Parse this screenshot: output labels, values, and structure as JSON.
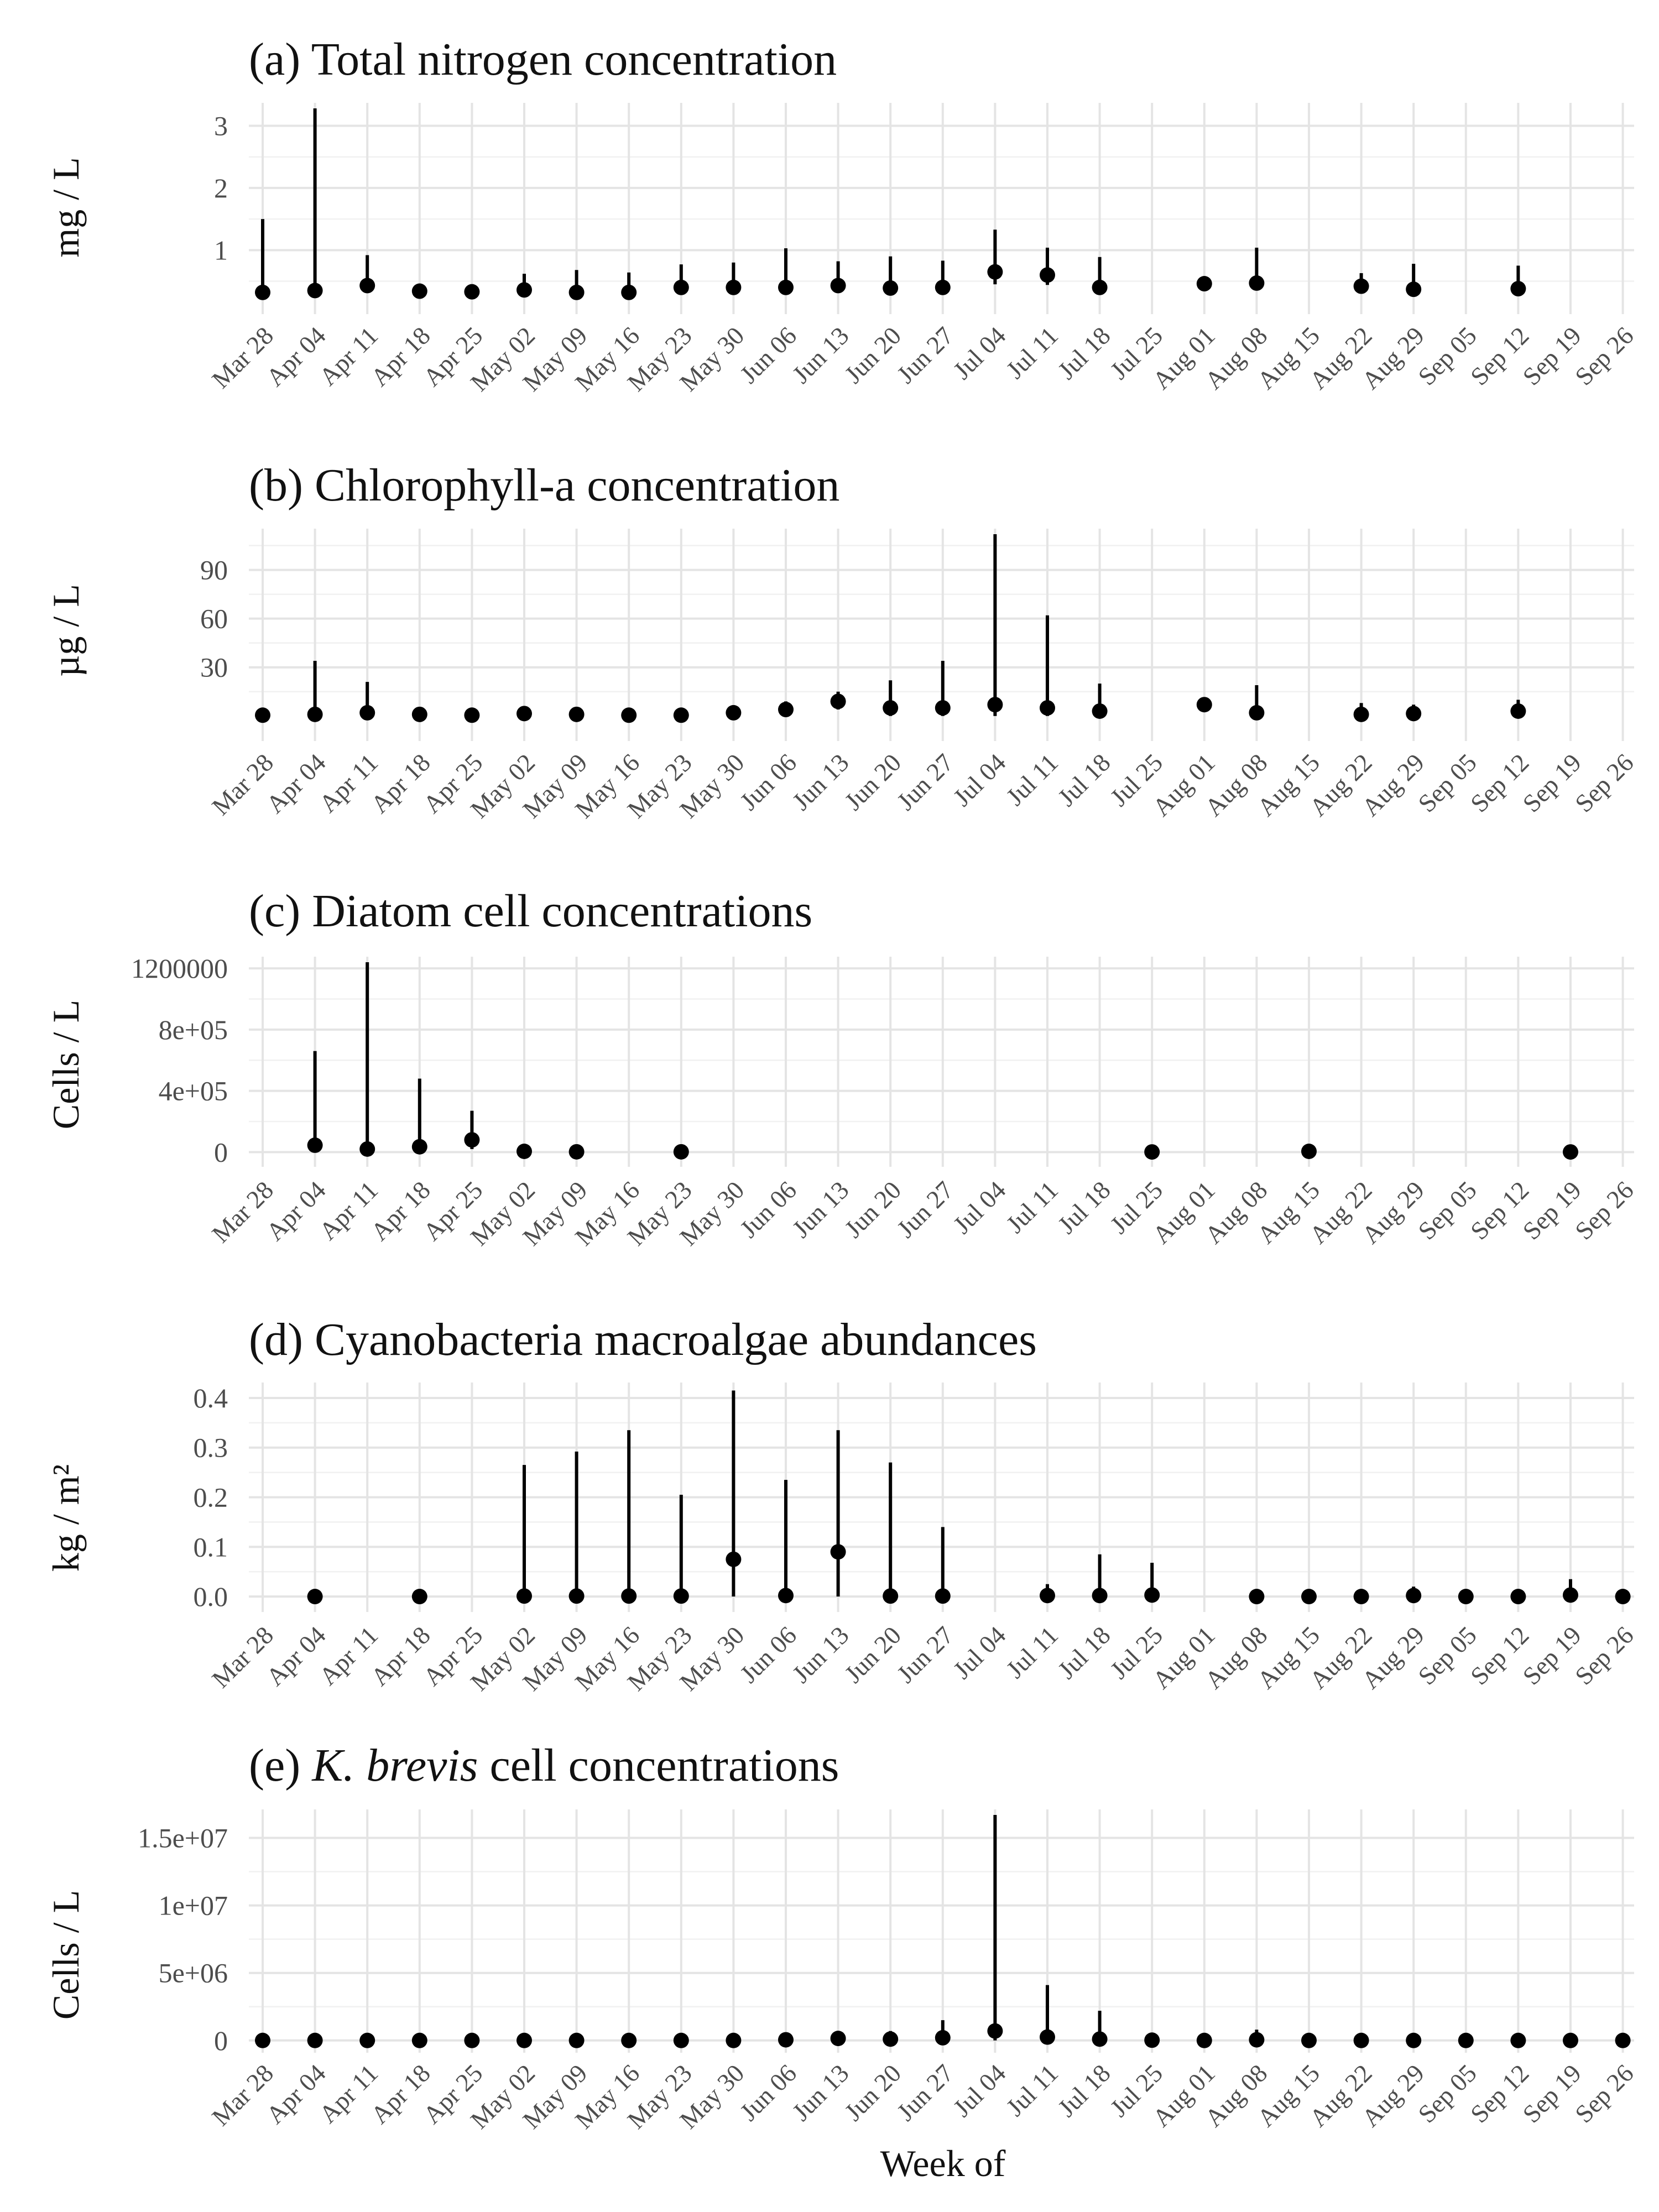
{
  "figure": {
    "xlabel": "Week of"
  },
  "chart_data": [
    {
      "type": "pointrange",
      "title": "(a) Total nitrogen concentration",
      "ylabel": "mg / L",
      "ylim": [
        0.06,
        3.28
      ],
      "yticks": [
        1,
        2,
        3
      ],
      "ytick_labels": [
        "1",
        "2",
        "3"
      ],
      "categories": [
        "Mar 28",
        "Apr 04",
        "Apr 11",
        "Apr 18",
        "Apr 25",
        "May 02",
        "May 09",
        "May 16",
        "May 23",
        "May 30",
        "Jun 06",
        "Jun 13",
        "Jun 20",
        "Jun 27",
        "Jul 04",
        "Jul 11",
        "Jul 18",
        "Jul 25",
        "Aug 01",
        "Aug 08",
        "Aug 15",
        "Aug 22",
        "Aug 29",
        "Sep 05",
        "Sep 12",
        "Sep 19",
        "Sep 26"
      ],
      "points": [
        {
          "x": "Mar 28",
          "y": 0.32,
          "low": 0.3,
          "high": 1.5
        },
        {
          "x": "Apr 04",
          "y": 0.35,
          "low": 0.32,
          "high": 3.28
        },
        {
          "x": "Apr 11",
          "y": 0.43,
          "low": 0.38,
          "high": 0.92
        },
        {
          "x": "Apr 18",
          "y": 0.34,
          "low": 0.3,
          "high": 0.45
        },
        {
          "x": "Apr 25",
          "y": 0.33,
          "low": 0.3,
          "high": 0.4
        },
        {
          "x": "May 02",
          "y": 0.36,
          "low": 0.31,
          "high": 0.62
        },
        {
          "x": "May 09",
          "y": 0.32,
          "low": 0.28,
          "high": 0.68
        },
        {
          "x": "May 16",
          "y": 0.32,
          "low": 0.29,
          "high": 0.64
        },
        {
          "x": "May 23",
          "y": 0.4,
          "low": 0.35,
          "high": 0.77
        },
        {
          "x": "May 30",
          "y": 0.4,
          "low": 0.35,
          "high": 0.8
        },
        {
          "x": "Jun 06",
          "y": 0.4,
          "low": 0.35,
          "high": 1.03
        },
        {
          "x": "Jun 13",
          "y": 0.43,
          "low": 0.38,
          "high": 0.82
        },
        {
          "x": "Jun 20",
          "y": 0.39,
          "low": 0.33,
          "high": 0.9
        },
        {
          "x": "Jun 27",
          "y": 0.4,
          "low": 0.35,
          "high": 0.83
        },
        {
          "x": "Jul 04",
          "y": 0.65,
          "low": 0.45,
          "high": 1.33
        },
        {
          "x": "Jul 11",
          "y": 0.6,
          "low": 0.44,
          "high": 1.04
        },
        {
          "x": "Jul 18",
          "y": 0.4,
          "low": 0.35,
          "high": 0.89
        },
        {
          "x": "Aug 01",
          "y": 0.46,
          "low": 0.42,
          "high": 0.5
        },
        {
          "x": "Aug 08",
          "y": 0.47,
          "low": 0.37,
          "high": 1.04
        },
        {
          "x": "Aug 22",
          "y": 0.42,
          "low": 0.37,
          "high": 0.63
        },
        {
          "x": "Aug 29",
          "y": 0.37,
          "low": 0.33,
          "high": 0.78
        },
        {
          "x": "Sep 12",
          "y": 0.38,
          "low": 0.34,
          "high": 0.75
        }
      ]
    },
    {
      "type": "pointrange",
      "title": "(b) Chlorophyll-a concentration",
      "ylabel": "µg / L",
      "ylim": [
        -12,
        112
      ],
      "yticks": [
        30,
        60,
        90
      ],
      "ytick_labels": [
        "30",
        "60",
        "90"
      ],
      "categories": [
        "Mar 28",
        "Apr 04",
        "Apr 11",
        "Apr 18",
        "Apr 25",
        "May 02",
        "May 09",
        "May 16",
        "May 23",
        "May 30",
        "Jun 06",
        "Jun 13",
        "Jun 20",
        "Jun 27",
        "Jul 04",
        "Jul 11",
        "Jul 18",
        "Jul 25",
        "Aug 01",
        "Aug 08",
        "Aug 15",
        "Aug 22",
        "Aug 29",
        "Sep 05",
        "Sep 12",
        "Sep 19",
        "Sep 26"
      ],
      "points": [
        {
          "x": "Mar 28",
          "y": 0.5,
          "low": 0,
          "high": 2
        },
        {
          "x": "Apr 04",
          "y": 1,
          "low": 0,
          "high": 34
        },
        {
          "x": "Apr 11",
          "y": 2,
          "low": 0,
          "high": 21
        },
        {
          "x": "Apr 18",
          "y": 1,
          "low": 0,
          "high": 3
        },
        {
          "x": "Apr 25",
          "y": 0.5,
          "low": 0,
          "high": 2
        },
        {
          "x": "May 02",
          "y": 1.5,
          "low": 0,
          "high": 6
        },
        {
          "x": "May 09",
          "y": 1,
          "low": 0,
          "high": 3
        },
        {
          "x": "May 16",
          "y": 0.5,
          "low": 0,
          "high": 2
        },
        {
          "x": "May 23",
          "y": 0.5,
          "low": 0,
          "high": 2
        },
        {
          "x": "May 30",
          "y": 2,
          "low": 0,
          "high": 5
        },
        {
          "x": "Jun 06",
          "y": 4,
          "low": 0,
          "high": 9
        },
        {
          "x": "Jun 13",
          "y": 9,
          "low": 4,
          "high": 15
        },
        {
          "x": "Jun 20",
          "y": 5,
          "low": 0,
          "high": 22
        },
        {
          "x": "Jun 27",
          "y": 5,
          "low": 0,
          "high": 34
        },
        {
          "x": "Jul 04",
          "y": 7,
          "low": 0,
          "high": 112
        },
        {
          "x": "Jul 11",
          "y": 5,
          "low": 0,
          "high": 62
        },
        {
          "x": "Jul 18",
          "y": 3,
          "low": 0,
          "high": 20
        },
        {
          "x": "Aug 01",
          "y": 7,
          "low": 4,
          "high": 10
        },
        {
          "x": "Aug 08",
          "y": 2,
          "low": 0,
          "high": 19
        },
        {
          "x": "Aug 22",
          "y": 1,
          "low": 0,
          "high": 8
        },
        {
          "x": "Aug 29",
          "y": 1.5,
          "low": 0,
          "high": 7
        },
        {
          "x": "Sep 12",
          "y": 3,
          "low": 0,
          "high": 10
        }
      ]
    },
    {
      "type": "pointrange",
      "title": "(c) Diatom cell concentrations",
      "ylabel": "Cells / L",
      "ylim": [
        -60000,
        1240000
      ],
      "yticks": [
        0,
        400000,
        800000,
        1200000
      ],
      "ytick_labels": [
        "0",
        "4e+05",
        "8e+05",
        "1200000"
      ],
      "categories": [
        "Mar 28",
        "Apr 04",
        "Apr 11",
        "Apr 18",
        "Apr 25",
        "May 02",
        "May 09",
        "May 16",
        "May 23",
        "May 30",
        "Jun 06",
        "Jun 13",
        "Jun 20",
        "Jun 27",
        "Jul 04",
        "Jul 11",
        "Jul 18",
        "Jul 25",
        "Aug 01",
        "Aug 08",
        "Aug 15",
        "Aug 22",
        "Aug 29",
        "Sep 05",
        "Sep 12",
        "Sep 19",
        "Sep 26"
      ],
      "points": [
        {
          "x": "Apr 04",
          "y": 45000,
          "low": 0,
          "high": 660000
        },
        {
          "x": "Apr 11",
          "y": 20000,
          "low": 0,
          "high": 1240000
        },
        {
          "x": "Apr 18",
          "y": 35000,
          "low": 0,
          "high": 480000
        },
        {
          "x": "Apr 25",
          "y": 80000,
          "low": 20000,
          "high": 270000
        },
        {
          "x": "May 02",
          "y": 5000,
          "low": 0,
          "high": 20000
        },
        {
          "x": "May 09",
          "y": 2000,
          "low": 0,
          "high": 8000
        },
        {
          "x": "May 23",
          "y": 2000,
          "low": 0,
          "high": 8000
        },
        {
          "x": "Jul 25",
          "y": 1000,
          "low": 0,
          "high": 5000
        },
        {
          "x": "Aug 15",
          "y": 5000,
          "low": 0,
          "high": 30000
        },
        {
          "x": "Sep 19",
          "y": 1000,
          "low": 0,
          "high": 5000
        }
      ]
    },
    {
      "type": "pointrange",
      "title": "(d) Cyanobacteria macroalgae abundances",
      "ylabel": "kg / m²",
      "ylim": [
        -0.02,
        0.42
      ],
      "yticks": [
        0,
        0.1,
        0.2,
        0.3,
        0.4
      ],
      "ytick_labels": [
        "0.0",
        "0.1",
        "0.2",
        "0.3",
        "0.4"
      ],
      "categories": [
        "Mar 28",
        "Apr 04",
        "Apr 11",
        "Apr 18",
        "Apr 25",
        "May 02",
        "May 09",
        "May 16",
        "May 23",
        "May 30",
        "Jun 06",
        "Jun 13",
        "Jun 20",
        "Jun 27",
        "Jul 04",
        "Jul 11",
        "Jul 18",
        "Jul 25",
        "Aug 01",
        "Aug 08",
        "Aug 15",
        "Aug 22",
        "Aug 29",
        "Sep 05",
        "Sep 12",
        "Sep 19",
        "Sep 26"
      ],
      "points": [
        {
          "x": "Apr 04",
          "y": 0,
          "low": 0,
          "high": 0.003
        },
        {
          "x": "Apr 18",
          "y": 0,
          "low": 0,
          "high": 0.003
        },
        {
          "x": "May 02",
          "y": 0.001,
          "low": 0,
          "high": 0.265
        },
        {
          "x": "May 09",
          "y": 0.001,
          "low": 0,
          "high": 0.292
        },
        {
          "x": "May 16",
          "y": 0.001,
          "low": 0,
          "high": 0.335
        },
        {
          "x": "May 23",
          "y": 0.001,
          "low": 0,
          "high": 0.205
        },
        {
          "x": "May 30",
          "y": 0.075,
          "low": 0,
          "high": 0.415
        },
        {
          "x": "Jun 06",
          "y": 0.002,
          "low": 0,
          "high": 0.235
        },
        {
          "x": "Jun 13",
          "y": 0.09,
          "low": 0,
          "high": 0.335
        },
        {
          "x": "Jun 20",
          "y": 0.001,
          "low": 0,
          "high": 0.27
        },
        {
          "x": "Jun 27",
          "y": 0.001,
          "low": 0,
          "high": 0.14
        },
        {
          "x": "Jul 11",
          "y": 0.002,
          "low": 0,
          "high": 0.025
        },
        {
          "x": "Jul 18",
          "y": 0.002,
          "low": 0,
          "high": 0.085
        },
        {
          "x": "Jul 25",
          "y": 0.003,
          "low": 0,
          "high": 0.068
        },
        {
          "x": "Aug 08",
          "y": 0,
          "low": 0,
          "high": 0.003
        },
        {
          "x": "Aug 15",
          "y": 0,
          "low": 0,
          "high": 0.002
        },
        {
          "x": "Aug 22",
          "y": 0,
          "low": 0,
          "high": 0.002
        },
        {
          "x": "Aug 29",
          "y": 0.002,
          "low": 0,
          "high": 0.02
        },
        {
          "x": "Sep 05",
          "y": 0,
          "low": 0,
          "high": 0.002
        },
        {
          "x": "Sep 12",
          "y": 0,
          "low": 0,
          "high": 0.002
        },
        {
          "x": "Sep 19",
          "y": 0.003,
          "low": 0,
          "high": 0.035
        },
        {
          "x": "Sep 26",
          "y": 0,
          "low": 0,
          "high": 0.002
        }
      ]
    },
    {
      "type": "pointrange",
      "title_prefix": "(e) ",
      "title_italic": "K. brevis",
      "title_suffix": " cell concentrations",
      "ylabel": "Cells / L",
      "ylim": [
        -500000,
        16700000
      ],
      "yticks": [
        0,
        5000000,
        10000000,
        15000000
      ],
      "ytick_labels": [
        "0",
        "5e+06",
        "1e+07",
        "1.5e+07"
      ],
      "categories": [
        "Mar 28",
        "Apr 04",
        "Apr 11",
        "Apr 18",
        "Apr 25",
        "May 02",
        "May 09",
        "May 16",
        "May 23",
        "May 30",
        "Jun 06",
        "Jun 13",
        "Jun 20",
        "Jun 27",
        "Jul 04",
        "Jul 11",
        "Jul 18",
        "Jul 25",
        "Aug 01",
        "Aug 08",
        "Aug 15",
        "Aug 22",
        "Aug 29",
        "Sep 05",
        "Sep 12",
        "Sep 19",
        "Sep 26"
      ],
      "points": [
        {
          "x": "Mar 28",
          "y": 0,
          "low": 0,
          "high": 20000
        },
        {
          "x": "Apr 04",
          "y": 0,
          "low": 0,
          "high": 20000
        },
        {
          "x": "Apr 11",
          "y": 0,
          "low": 0,
          "high": 20000
        },
        {
          "x": "Apr 18",
          "y": 0,
          "low": 0,
          "high": 20000
        },
        {
          "x": "Apr 25",
          "y": 0,
          "low": 0,
          "high": 20000
        },
        {
          "x": "May 02",
          "y": 0,
          "low": 0,
          "high": 20000
        },
        {
          "x": "May 09",
          "y": 0,
          "low": 0,
          "high": 20000
        },
        {
          "x": "May 16",
          "y": 0,
          "low": 0,
          "high": 20000
        },
        {
          "x": "May 23",
          "y": 0,
          "low": 0,
          "high": 20000
        },
        {
          "x": "May 30",
          "y": 0,
          "low": 0,
          "high": 20000
        },
        {
          "x": "Jun 06",
          "y": 50000,
          "low": 0,
          "high": 200000
        },
        {
          "x": "Jun 13",
          "y": 150000,
          "low": 0,
          "high": 700000
        },
        {
          "x": "Jun 20",
          "y": 100000,
          "low": 0,
          "high": 700000
        },
        {
          "x": "Jun 27",
          "y": 200000,
          "low": 0,
          "high": 1500000
        },
        {
          "x": "Jul 04",
          "y": 700000,
          "low": 0,
          "high": 16700000
        },
        {
          "x": "Jul 11",
          "y": 250000,
          "low": 0,
          "high": 4100000
        },
        {
          "x": "Jul 18",
          "y": 100000,
          "low": 0,
          "high": 2200000
        },
        {
          "x": "Jul 25",
          "y": 20000,
          "low": 0,
          "high": 150000
        },
        {
          "x": "Aug 01",
          "y": 0,
          "low": 0,
          "high": 20000
        },
        {
          "x": "Aug 08",
          "y": 50000,
          "low": 0,
          "high": 800000
        },
        {
          "x": "Aug 15",
          "y": 0,
          "low": 0,
          "high": 20000
        },
        {
          "x": "Aug 22",
          "y": 0,
          "low": 0,
          "high": 20000
        },
        {
          "x": "Aug 29",
          "y": 0,
          "low": 0,
          "high": 20000
        },
        {
          "x": "Sep 05",
          "y": 0,
          "low": 0,
          "high": 20000
        },
        {
          "x": "Sep 12",
          "y": 0,
          "low": 0,
          "high": 20000
        },
        {
          "x": "Sep 19",
          "y": 0,
          "low": 0,
          "high": 20000
        },
        {
          "x": "Sep 26",
          "y": 0,
          "low": 0,
          "high": 20000
        }
      ]
    }
  ]
}
